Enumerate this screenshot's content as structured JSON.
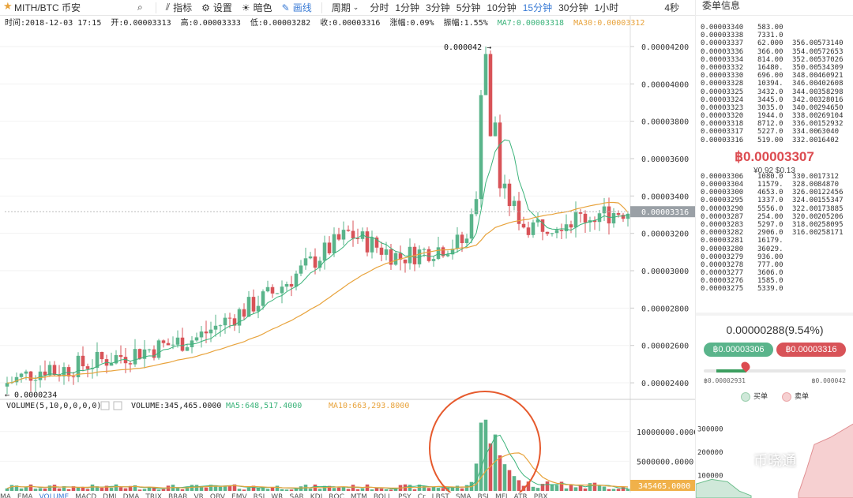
{
  "toolbar": {
    "pair": "MITH/BTC 币安",
    "indicator_label": "指标",
    "settings_label": "设置",
    "theme_label": "暗色",
    "draw_label": "画线",
    "period_label": "周期",
    "intervals": [
      "分时",
      "1分钟",
      "3分钟",
      "5分钟",
      "10分钟",
      "15分钟",
      "30分钟",
      "1小时"
    ],
    "active_interval": "15分钟",
    "right_label": "4秒"
  },
  "info": {
    "time": "时间:2018-12-03 17:15",
    "open": "开:0.00003313",
    "high": "高:0.00003333",
    "low": "低:0.00003282",
    "close": "收:0.00003316",
    "change": "涨幅:0.09%",
    "amplitude": "振幅:1.55%",
    "ma7": "MA7:0.00003318",
    "ma30": "MA30:0.00003312"
  },
  "chart_data": {
    "type": "candlestick",
    "max_label": "0.000042",
    "min_label": "0.0000234",
    "price_ticks": [
      "0.00004200",
      "0.00004000",
      "0.00003800",
      "0.00003600",
      "0.00003400",
      "0.00003200",
      "0.00003000",
      "0.00002800",
      "0.00002600",
      "0.00002400"
    ],
    "price_tick_values": [
      4.2,
      4.0,
      3.8,
      3.6,
      3.4,
      3.2,
      3.0,
      2.8,
      2.6,
      2.4
    ],
    "price_range": [
      2.32,
      4.28
    ],
    "current_price": "0.00003316",
    "current_price_value": 3.316,
    "volume_header": "VOLUME(5,10,0,0,0,0)",
    "volume_value": "VOLUME:345,465.0000",
    "vol_ma5": "MA5:648,517.4000",
    "vol_ma10": "MA10:663,293.8000",
    "volume_ticks": [
      "10000000.0000",
      "5000000.0000"
    ],
    "volume_tick_values": [
      10000000,
      5000000
    ],
    "volume_range": [
      0,
      12500000
    ],
    "current_volume": "345465.0000",
    "current_volume_value": 345465,
    "colors": {
      "up": "#5ab48b",
      "down": "#d85358",
      "ma_short": "#3bb37a",
      "ma_long": "#e8a33c",
      "circle": "#e65a2d"
    }
  },
  "orderbook": {
    "title": "委单信息",
    "asks": [
      [
        "0.00003340",
        "583.00",
        "",
        ""
      ],
      [
        "0.00003338",
        "7331.0",
        "",
        ""
      ],
      [
        "0.00003337",
        "62.000",
        "356.00",
        "573140"
      ],
      [
        "0.00003336",
        "366.00",
        "354.00",
        "572653"
      ],
      [
        "0.00003334",
        "814.00",
        "352.00",
        "537026"
      ],
      [
        "0.00003332",
        "16480.",
        "350.00",
        "534309"
      ],
      [
        "0.00003330",
        "696.00",
        "348.00",
        "460921"
      ],
      [
        "0.00003328",
        "10394.",
        "346.00",
        "402608"
      ],
      [
        "0.00003325",
        "3432.0",
        "344.00",
        "358298"
      ],
      [
        "0.00003324",
        "3445.0",
        "342.00",
        "328016"
      ],
      [
        "0.00003323",
        "3035.0",
        "340.00",
        "294650"
      ],
      [
        "0.00003320",
        "1944.0",
        "338.00",
        "269104"
      ],
      [
        "0.00003318",
        "8712.0",
        "336.00",
        "152932"
      ],
      [
        "0.00003317",
        "5227.0",
        "334.00",
        "63040"
      ],
      [
        "0.00003316",
        "519.00",
        "332.00",
        "16402"
      ]
    ],
    "last_price": "฿0.00003307",
    "last_cny": "¥0.92  $0.13",
    "bids": [
      [
        "0.00003306",
        "1080.0",
        "330.00",
        "17312"
      ],
      [
        "0.00003304",
        "11579.",
        "328.00",
        "84870"
      ],
      [
        "0.00003300",
        "4653.0",
        "326.00",
        "122456"
      ],
      [
        "0.00003295",
        "1337.0",
        "324.00",
        "155347"
      ],
      [
        "0.00003290",
        "5556.0",
        "322.00",
        "173885"
      ],
      [
        "0.00003287",
        "254.00",
        "320.00",
        "205206"
      ],
      [
        "0.00003283",
        "5297.0",
        "318.00",
        "258095"
      ],
      [
        "0.00003282",
        "2906.0",
        "316.00",
        "258171"
      ],
      [
        "0.00003281",
        "16179.",
        "",
        ""
      ],
      [
        "0.00003280",
        "36029.",
        "",
        ""
      ],
      [
        "0.00003279",
        "936.00",
        "",
        ""
      ],
      [
        "0.00003278",
        "777.00",
        "",
        ""
      ],
      [
        "0.00003277",
        "3606.0",
        "",
        ""
      ],
      [
        "0.00003276",
        "1585.0",
        "",
        ""
      ],
      [
        "0.00003275",
        "5339.0",
        "",
        ""
      ]
    ]
  },
  "stats": {
    "change": "0.00000288(9.54%)",
    "buy_price": "฿0.00003306",
    "sell_price": "฿0.00003316",
    "range_low": "฿0.00002931",
    "range_high": "฿0.000042",
    "buy_label": "买单",
    "sell_label": "卖单"
  },
  "depth": {
    "ticks": [
      "300000",
      "200000",
      "100000"
    ],
    "tick_values": [
      300000,
      200000,
      100000
    ],
    "range": [
      0,
      380000
    ]
  },
  "watermark": "币晓通",
  "indicators_strip": [
    "MA",
    "EMA",
    "VOLUME",
    "MACD",
    "DMI",
    "DMA",
    "TRIX",
    "BRAR",
    "VR",
    "OBV",
    "EMV",
    "RSI",
    "WR",
    "SAR",
    "KDJ",
    "ROC",
    "MTM",
    "BOLL",
    "PSY",
    "Cr",
    "LBST",
    "SMA",
    "BSI",
    "MFI",
    "ATR",
    "PBX"
  ]
}
